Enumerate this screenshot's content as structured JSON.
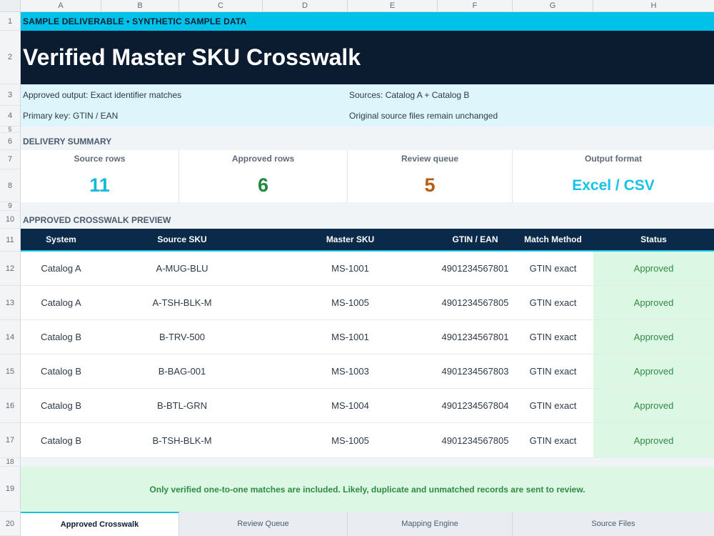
{
  "columns": [
    "A",
    "B",
    "C",
    "D",
    "E",
    "F",
    "G",
    "H"
  ],
  "row_numbers": [
    "1",
    "2",
    "3",
    "4",
    "5",
    "6",
    "7",
    "8",
    "9",
    "10",
    "11",
    "12",
    "13",
    "14",
    "15",
    "16",
    "17",
    "18",
    "19",
    "20"
  ],
  "banner": "SAMPLE DELIVERABLE  •  SYNTHETIC SAMPLE DATA",
  "title": "Verified Master SKU Crosswalk",
  "meta": {
    "approved_output": "Approved output: Exact identifier matches",
    "primary_key": "Primary key: GTIN / EAN",
    "sources": "Sources: Catalog A + Catalog B",
    "original_files": "Original source files remain unchanged"
  },
  "summary": {
    "title": "DELIVERY SUMMARY",
    "kpis": [
      {
        "label": "Source rows",
        "value": "11",
        "color": "#16b8d8"
      },
      {
        "label": "Approved rows",
        "value": "6",
        "color": "#1f8a3c"
      },
      {
        "label": "Review queue",
        "value": "5",
        "color": "#b85c12"
      },
      {
        "label": "Output format",
        "value": "Excel / CSV",
        "color": "#16c3e8"
      }
    ]
  },
  "preview": {
    "title": "APPROVED CROSSWALK PREVIEW",
    "headers": [
      "System",
      "Source SKU",
      "Master SKU",
      "GTIN / EAN",
      "Match Method",
      "Status"
    ],
    "rows": [
      [
        "Catalog A",
        "A-MUG-BLU",
        "MS-1001",
        "4901234567801",
        "GTIN exact",
        "Approved"
      ],
      [
        "Catalog A",
        "A-TSH-BLK-M",
        "MS-1005",
        "4901234567805",
        "GTIN exact",
        "Approved"
      ],
      [
        "Catalog B",
        "B-TRV-500",
        "MS-1001",
        "4901234567801",
        "GTIN exact",
        "Approved"
      ],
      [
        "Catalog B",
        "B-BAG-001",
        "MS-1003",
        "4901234567803",
        "GTIN exact",
        "Approved"
      ],
      [
        "Catalog B",
        "B-BTL-GRN",
        "MS-1004",
        "4901234567804",
        "GTIN exact",
        "Approved"
      ],
      [
        "Catalog B",
        "B-TSH-BLK-M",
        "MS-1005",
        "4901234567805",
        "GTIN exact",
        "Approved"
      ]
    ]
  },
  "note": "Only verified one-to-one matches are included. Likely, duplicate and unmatched records are sent to review.",
  "tabs": [
    {
      "label": "Approved Crosswalk",
      "active": true
    },
    {
      "label": "Review Queue",
      "active": false
    },
    {
      "label": "Mapping Engine",
      "active": false
    },
    {
      "label": "Source Files",
      "active": false
    }
  ],
  "colors": {
    "banner": "#00c2e8",
    "title_bg": "#0b1c30",
    "header_bg": "#0b2a4a",
    "approved_bg": "#dcf7e3",
    "approved_text": "#2e8b45"
  }
}
